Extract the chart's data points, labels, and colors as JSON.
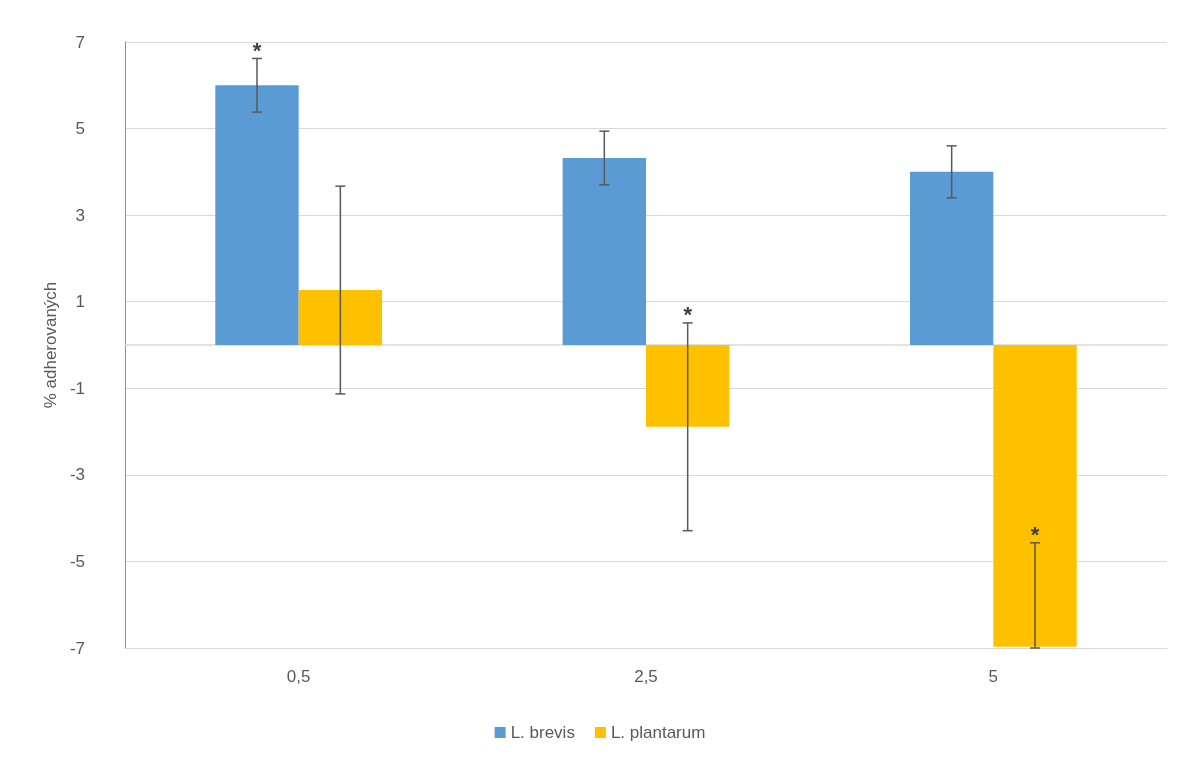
{
  "chart_data": {
    "type": "bar",
    "ylabel": "% adherovaných",
    "categories": [
      "0,5",
      "2,5",
      "5"
    ],
    "series": [
      {
        "name": "L. brevis",
        "color": "#5b9bd5",
        "values": [
          6.0,
          4.32,
          4.0
        ],
        "errors": [
          0.62,
          0.62,
          0.6
        ]
      },
      {
        "name": "L. plantarum",
        "color": "#ffc000",
        "values": [
          1.27,
          -1.89,
          -6.97
        ],
        "errors": [
          2.4,
          2.4,
          [
            -7,
            -4.57
          ]
        ]
      }
    ],
    "ylim": [
      -7,
      7
    ],
    "yticks": [
      -7,
      -5,
      -3,
      -1,
      1,
      3,
      5,
      7
    ],
    "grid": "y",
    "legend": "bottom",
    "annotations": [
      {
        "text": "*",
        "x": "0,5",
        "y": 6.0
      },
      {
        "text": "*",
        "x": "2,5",
        "y": 0.51
      },
      {
        "text": "*",
        "x": "5",
        "y": -4.57
      }
    ]
  }
}
